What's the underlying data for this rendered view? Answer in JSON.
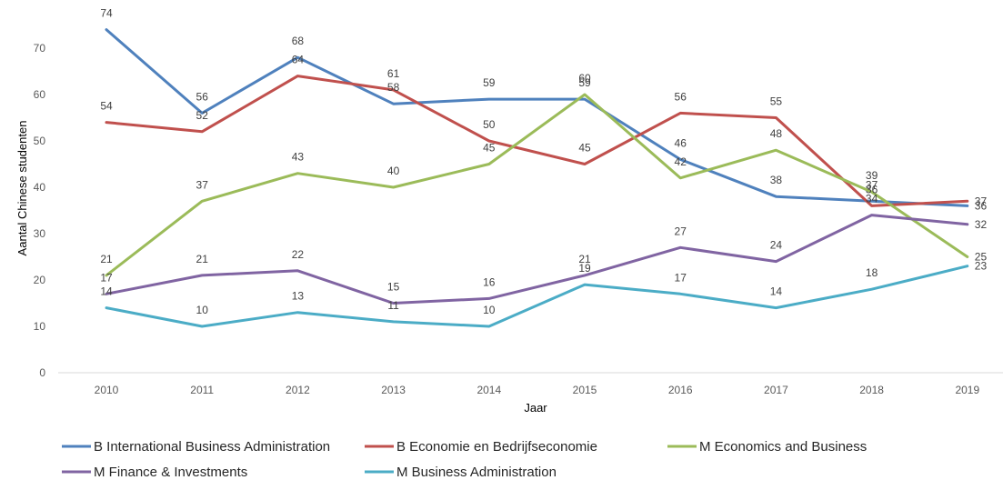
{
  "chart_data": {
    "type": "line",
    "title": "",
    "xlabel": "Jaar",
    "ylabel": "Aantal Chinese studenten",
    "x": [
      "2010",
      "2011",
      "2012",
      "2013",
      "2014",
      "2015",
      "2016",
      "2017",
      "2018",
      "2019"
    ],
    "ylim": [
      0,
      70
    ],
    "yticks": [
      0,
      10,
      20,
      30,
      40,
      50,
      60,
      70
    ],
    "grid": false,
    "legend_position": "bottom",
    "series": [
      {
        "name": "B International Business Administration",
        "color": "#4F81BD",
        "values": [
          74,
          56,
          68,
          58,
          59,
          59,
          46,
          38,
          37,
          36
        ]
      },
      {
        "name": "B Economie en Bedrijfseconomie",
        "color": "#C0504D",
        "values": [
          54,
          52,
          64,
          61,
          50,
          45,
          56,
          55,
          36,
          37
        ]
      },
      {
        "name": "M Economics and Business",
        "color": "#9BBB59",
        "values": [
          21,
          37,
          43,
          40,
          45,
          60,
          42,
          48,
          39,
          25
        ]
      },
      {
        "name": "M Finance & Investments",
        "color": "#8064A2",
        "values": [
          17,
          21,
          22,
          15,
          16,
          21,
          27,
          24,
          34,
          32
        ]
      },
      {
        "name": "M Business Administration",
        "color": "#4BACC6",
        "values": [
          14,
          10,
          13,
          11,
          10,
          19,
          17,
          14,
          18,
          23
        ]
      }
    ]
  }
}
